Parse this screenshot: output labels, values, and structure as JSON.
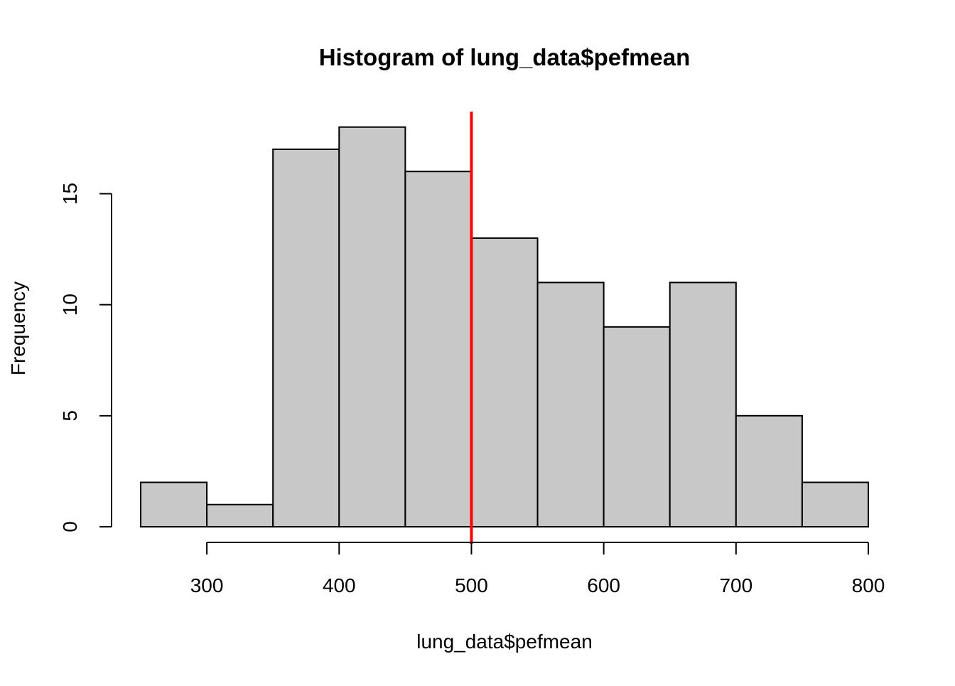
{
  "chart_data": {
    "type": "bar",
    "title": "Histogram of lung_data$pefmean",
    "xlabel": "lung_data$pefmean",
    "ylabel": "Frequency",
    "bins": [
      {
        "x0": 250,
        "x1": 300,
        "count": 2
      },
      {
        "x0": 300,
        "x1": 350,
        "count": 1
      },
      {
        "x0": 350,
        "x1": 400,
        "count": 17
      },
      {
        "x0": 400,
        "x1": 450,
        "count": 18
      },
      {
        "x0": 450,
        "x1": 500,
        "count": 16
      },
      {
        "x0": 500,
        "x1": 550,
        "count": 13
      },
      {
        "x0": 550,
        "x1": 600,
        "count": 11
      },
      {
        "x0": 600,
        "x1": 650,
        "count": 9
      },
      {
        "x0": 650,
        "x1": 700,
        "count": 11
      },
      {
        "x0": 700,
        "x1": 750,
        "count": 5
      },
      {
        "x0": 750,
        "x1": 800,
        "count": 2
      }
    ],
    "x_ticks": [
      300,
      400,
      500,
      600,
      700,
      800
    ],
    "y_ticks": [
      0,
      5,
      10,
      15
    ],
    "xlim": [
      250,
      800
    ],
    "ylim": [
      0,
      18.6
    ],
    "reference_line": {
      "x": 500,
      "color": "#ff0000"
    },
    "bar_color": "#c8c8c8",
    "bar_border_color": "#000000",
    "grid": false
  }
}
